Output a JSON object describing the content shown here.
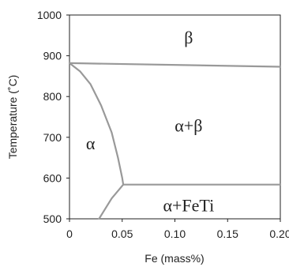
{
  "chart_data": {
    "type": "line",
    "title": "",
    "xlabel": "Fe (mass%)",
    "ylabel": "Temperature (˚C)",
    "xlim": [
      0,
      0.2
    ],
    "ylim": [
      500,
      1000
    ],
    "x_ticks": [
      {
        "value": 0,
        "label": "0"
      },
      {
        "value": 0.05,
        "label": "0.05"
      },
      {
        "value": 0.1,
        "label": "0.10"
      },
      {
        "value": 0.15,
        "label": "0.15"
      },
      {
        "value": 0.2,
        "label": "0.20"
      }
    ],
    "y_ticks": [
      {
        "value": 500,
        "label": "500"
      },
      {
        "value": 600,
        "label": "600"
      },
      {
        "value": 700,
        "label": "700"
      },
      {
        "value": 800,
        "label": "800"
      },
      {
        "value": 900,
        "label": "900"
      },
      {
        "value": 1000,
        "label": "1000"
      }
    ],
    "grid": false,
    "line_color": "#999999",
    "boundaries": [
      {
        "id": "beta-transus",
        "points": [
          [
            0,
            882
          ],
          [
            0.2,
            873
          ]
        ]
      },
      {
        "id": "alpha-solvus",
        "points": [
          [
            0,
            882
          ],
          [
            0.01,
            862
          ],
          [
            0.02,
            830
          ],
          [
            0.03,
            778
          ],
          [
            0.04,
            712
          ],
          [
            0.046,
            650
          ],
          [
            0.05,
            600
          ],
          [
            0.051,
            584
          ]
        ]
      },
      {
        "id": "eutectoid",
        "points": [
          [
            0.051,
            584
          ],
          [
            0.2,
            584
          ]
        ]
      },
      {
        "id": "fe-ti-solvus",
        "points": [
          [
            0.051,
            584
          ],
          [
            0.04,
            550
          ],
          [
            0.028,
            500
          ]
        ]
      }
    ],
    "regions": [
      {
        "id": "beta",
        "label": "β",
        "x": 0.113,
        "y": 940
      },
      {
        "id": "alpha-beta",
        "label": "α+β",
        "x": 0.113,
        "y": 724
      },
      {
        "id": "alpha",
        "label": "α",
        "x": 0.02,
        "y": 680
      },
      {
        "id": "alpha-feti",
        "label": "α+FeTi",
        "x": 0.113,
        "y": 528
      }
    ]
  }
}
